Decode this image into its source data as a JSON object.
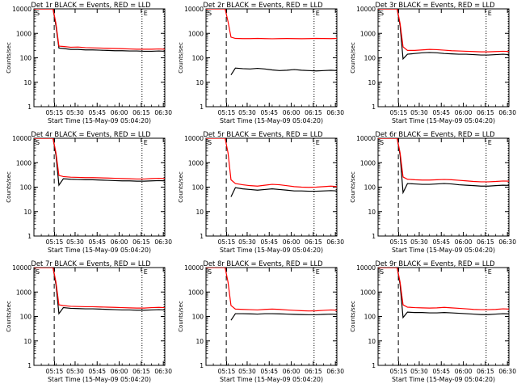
{
  "figure": {
    "xlabel": "Start Time (15-May-09 05:04:20)",
    "ylabel": "Counts/sec",
    "xticks": [
      "05:15",
      "05:30",
      "05:45",
      "06:00",
      "06:15",
      "06:30"
    ],
    "yticks": [
      "1",
      "10",
      "100",
      "1000",
      "10000"
    ],
    "series_colors": {
      "events": "#000000",
      "lld": "#ff0000"
    },
    "marker_labels": [
      "S",
      "E"
    ]
  },
  "chart_data": [
    {
      "type": "line",
      "title": "Det 1r BLACK = Events, RED = LLD",
      "ylim": [
        1,
        10000
      ],
      "yscale": "log",
      "x": [
        0,
        5,
        10,
        13,
        15,
        17,
        20,
        25,
        30,
        35,
        40,
        45,
        50,
        55,
        60,
        65,
        70,
        75,
        80,
        85,
        89
      ],
      "series": [
        {
          "key": "events",
          "values": [
            10000,
            10000,
            10000,
            10000,
            2000,
            250,
            240,
            220,
            220,
            210,
            210,
            205,
            200,
            195,
            195,
            190,
            190,
            185,
            185,
            190,
            185
          ]
        },
        {
          "key": "lld",
          "values": [
            10000,
            10000,
            10000,
            10000,
            2500,
            300,
            290,
            270,
            275,
            260,
            255,
            250,
            245,
            240,
            235,
            230,
            225,
            225,
            225,
            230,
            225
          ]
        }
      ]
    },
    {
      "type": "line",
      "title": "Det 2r BLACK = Events, RED = LLD",
      "ylim": [
        1,
        10000
      ],
      "yscale": "log",
      "x": [
        0,
        5,
        10,
        13,
        15,
        17,
        20,
        25,
        30,
        35,
        40,
        45,
        50,
        55,
        60,
        65,
        70,
        75,
        80,
        85,
        89
      ],
      "series": [
        {
          "key": "events",
          "values": [
            null,
            null,
            null,
            null,
            null,
            20,
            38,
            36,
            35,
            37,
            35,
            32,
            30,
            31,
            33,
            31,
            30,
            29,
            30,
            31,
            30
          ]
        },
        {
          "key": "lld",
          "values": [
            10000,
            10000,
            10000,
            10000,
            3000,
            700,
            620,
            610,
            610,
            620,
            610,
            600,
            610,
            615,
            610,
            605,
            610,
            620,
            615,
            610,
            620
          ]
        }
      ]
    },
    {
      "type": "line",
      "title": "Det 3r BLACK = Events, RED = LLD",
      "ylim": [
        1,
        10000
      ],
      "yscale": "log",
      "x": [
        0,
        5,
        10,
        13,
        15,
        17,
        20,
        25,
        30,
        35,
        40,
        45,
        50,
        55,
        60,
        65,
        70,
        75,
        80,
        85,
        89
      ],
      "series": [
        {
          "key": "events",
          "values": [
            10000,
            10000,
            10000,
            10000,
            2000,
            90,
            140,
            150,
            160,
            165,
            160,
            150,
            145,
            140,
            140,
            135,
            130,
            130,
            135,
            140,
            135
          ]
        },
        {
          "key": "lld",
          "values": [
            10000,
            10000,
            10000,
            10000,
            2500,
            280,
            200,
            200,
            210,
            220,
            215,
            205,
            195,
            190,
            185,
            180,
            175,
            175,
            180,
            185,
            180
          ]
        }
      ]
    },
    {
      "type": "line",
      "title": "Det 4r BLACK = Events, RED = LLD",
      "ylim": [
        1,
        10000
      ],
      "yscale": "log",
      "x": [
        0,
        5,
        10,
        13,
        15,
        17,
        20,
        25,
        30,
        35,
        40,
        45,
        50,
        55,
        60,
        65,
        70,
        75,
        80,
        85,
        89
      ],
      "series": [
        {
          "key": "events",
          "values": [
            10000,
            10000,
            10000,
            10000,
            2000,
            120,
            220,
            210,
            205,
            200,
            200,
            195,
            190,
            185,
            180,
            180,
            175,
            175,
            180,
            185,
            180
          ]
        },
        {
          "key": "lld",
          "values": [
            10000,
            10000,
            10000,
            10000,
            2500,
            300,
            270,
            255,
            250,
            245,
            245,
            240,
            235,
            230,
            225,
            220,
            215,
            215,
            225,
            230,
            225
          ]
        }
      ]
    },
    {
      "type": "line",
      "title": "Det 5r BLACK = Events, RED = LLD",
      "ylim": [
        1,
        10000
      ],
      "yscale": "log",
      "x": [
        0,
        5,
        10,
        13,
        15,
        17,
        20,
        25,
        30,
        35,
        40,
        45,
        50,
        55,
        60,
        65,
        70,
        75,
        80,
        85,
        89
      ],
      "series": [
        {
          "key": "events",
          "values": [
            null,
            null,
            null,
            null,
            null,
            40,
            95,
            85,
            80,
            75,
            80,
            85,
            80,
            75,
            70,
            70,
            68,
            68,
            70,
            72,
            70
          ]
        },
        {
          "key": "lld",
          "values": [
            10000,
            10000,
            10000,
            10000,
            2500,
            200,
            140,
            125,
            115,
            110,
            120,
            130,
            125,
            115,
            105,
            100,
            98,
            100,
            105,
            110,
            105
          ]
        }
      ]
    },
    {
      "type": "line",
      "title": "Det 6r BLACK = Events, RED = LLD",
      "ylim": [
        1,
        10000
      ],
      "yscale": "log",
      "x": [
        0,
        5,
        10,
        13,
        15,
        17,
        20,
        25,
        30,
        35,
        40,
        45,
        50,
        55,
        60,
        65,
        70,
        75,
        80,
        85,
        89
      ],
      "series": [
        {
          "key": "events",
          "values": [
            10000,
            10000,
            10000,
            10000,
            2000,
            60,
            140,
            135,
            130,
            130,
            135,
            140,
            135,
            125,
            120,
            115,
            110,
            110,
            115,
            120,
            118
          ]
        },
        {
          "key": "lld",
          "values": [
            10000,
            10000,
            10000,
            10000,
            2500,
            260,
            210,
            200,
            195,
            195,
            200,
            205,
            200,
            190,
            180,
            170,
            165,
            165,
            170,
            178,
            175
          ]
        }
      ]
    },
    {
      "type": "line",
      "title": "Det 7r BLACK = Events, RED = LLD",
      "ylim": [
        1,
        10000
      ],
      "yscale": "log",
      "x": [
        0,
        5,
        10,
        13,
        15,
        17,
        20,
        25,
        30,
        35,
        40,
        45,
        50,
        55,
        60,
        65,
        70,
        75,
        80,
        85,
        89
      ],
      "series": [
        {
          "key": "events",
          "values": [
            10000,
            10000,
            10000,
            10000,
            2000,
            130,
            230,
            215,
            210,
            205,
            205,
            200,
            195,
            190,
            185,
            185,
            180,
            180,
            185,
            190,
            185
          ]
        },
        {
          "key": "lld",
          "values": [
            10000,
            10000,
            10000,
            10000,
            2500,
            300,
            280,
            260,
            255,
            250,
            250,
            245,
            240,
            235,
            230,
            225,
            220,
            220,
            230,
            235,
            230
          ]
        }
      ]
    },
    {
      "type": "line",
      "title": "Det 8r BLACK = Events, RED = LLD",
      "ylim": [
        1,
        10000
      ],
      "yscale": "log",
      "x": [
        0,
        5,
        10,
        13,
        15,
        17,
        20,
        25,
        30,
        35,
        40,
        45,
        50,
        55,
        60,
        65,
        70,
        75,
        80,
        85,
        89
      ],
      "series": [
        {
          "key": "events",
          "values": [
            null,
            null,
            null,
            null,
            null,
            70,
            130,
            130,
            128,
            125,
            130,
            130,
            128,
            125,
            122,
            120,
            118,
            118,
            122,
            125,
            122
          ]
        },
        {
          "key": "lld",
          "values": [
            10000,
            10000,
            10000,
            10000,
            2500,
            280,
            200,
            195,
            190,
            185,
            195,
            200,
            195,
            185,
            178,
            172,
            168,
            170,
            178,
            185,
            180
          ]
        }
      ]
    },
    {
      "type": "line",
      "title": "Det 9r BLACK = Events, RED = LLD",
      "ylim": [
        1,
        10000
      ],
      "yscale": "log",
      "x": [
        0,
        5,
        10,
        13,
        15,
        17,
        20,
        25,
        30,
        35,
        40,
        45,
        50,
        55,
        60,
        65,
        70,
        75,
        80,
        85,
        89
      ],
      "series": [
        {
          "key": "events",
          "values": [
            10000,
            10000,
            10000,
            10000,
            2000,
            90,
            150,
            145,
            145,
            140,
            140,
            145,
            140,
            135,
            130,
            125,
            120,
            120,
            125,
            130,
            128
          ]
        },
        {
          "key": "lld",
          "values": [
            10000,
            10000,
            10000,
            10000,
            2500,
            300,
            240,
            230,
            225,
            220,
            225,
            235,
            225,
            215,
            205,
            195,
            190,
            190,
            195,
            205,
            200
          ]
        }
      ]
    }
  ]
}
